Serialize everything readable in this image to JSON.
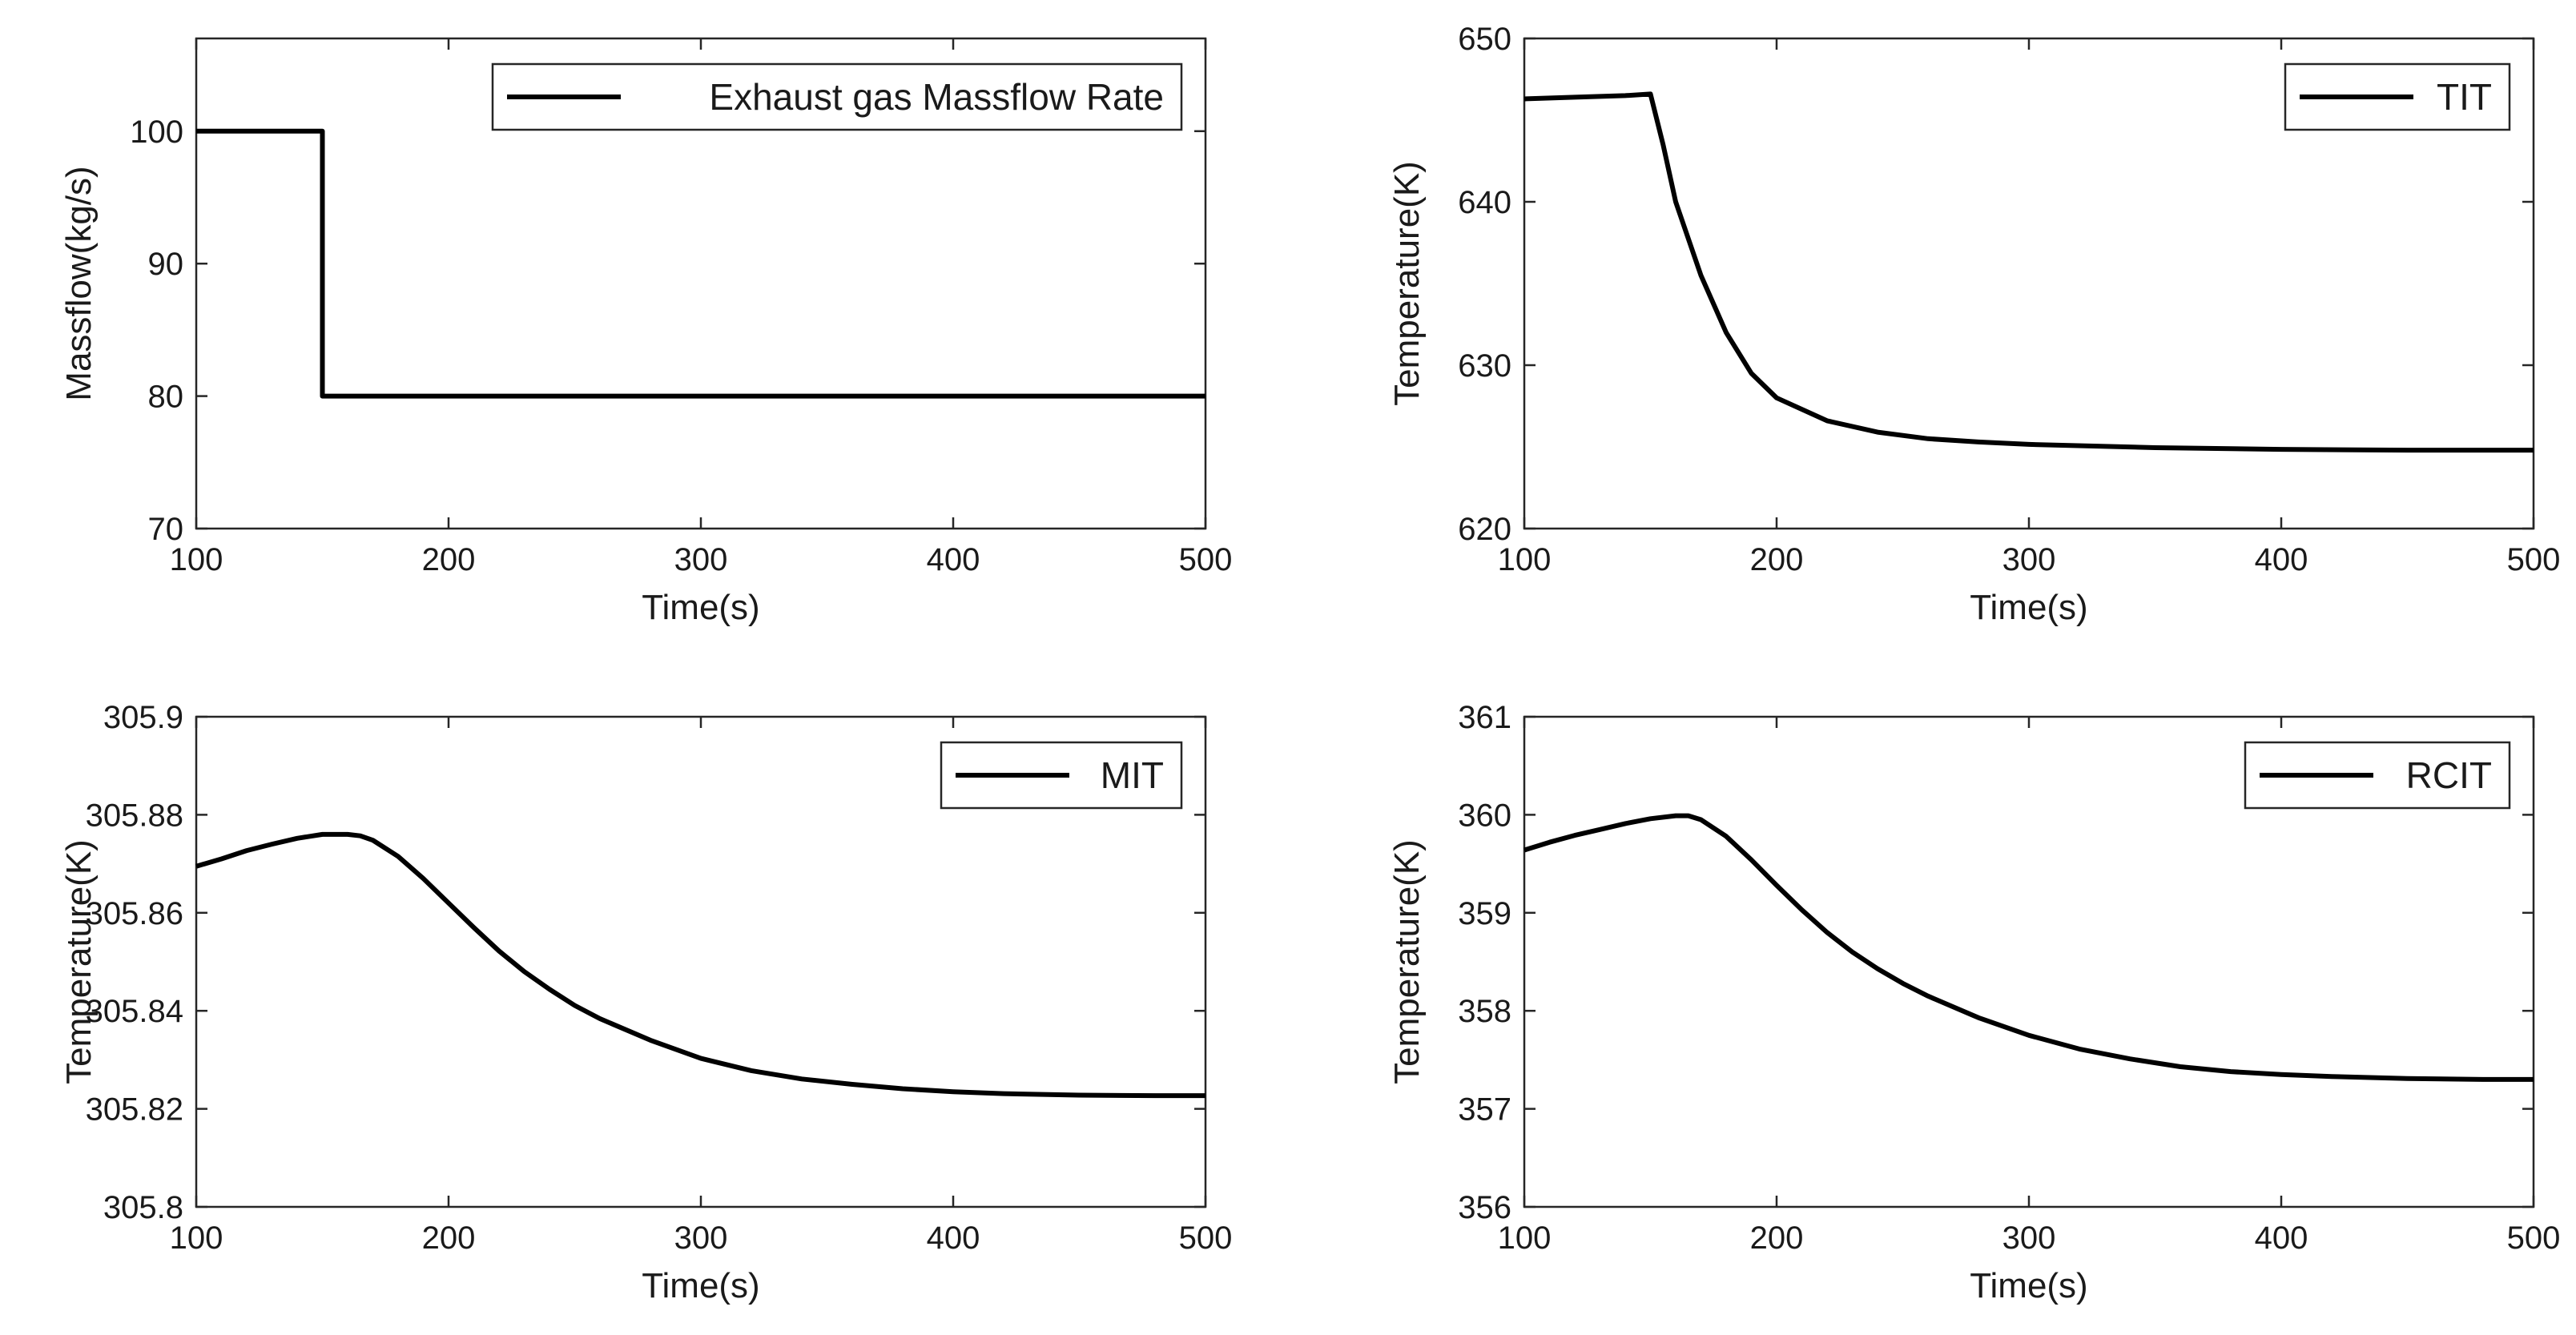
{
  "chart_data": [
    {
      "type": "line",
      "xlabel": "Time(s)",
      "ylabel": "Massflow(kg/s)",
      "xlim": [
        100,
        500
      ],
      "ylim": [
        70,
        107
      ],
      "xticks": [
        100,
        200,
        300,
        400,
        500
      ],
      "yticks": [
        70,
        80,
        90,
        100
      ],
      "ytick_labels": [
        "70",
        "80",
        "90",
        "100"
      ],
      "legend_position": "top-right",
      "series": [
        {
          "name": "Exhaust gas Massflow Rate",
          "color": "#000000",
          "x": [
            100,
            150,
            150,
            500
          ],
          "y": [
            100,
            100,
            80,
            80
          ]
        }
      ]
    },
    {
      "type": "line",
      "xlabel": "Time(s)",
      "ylabel": "Temperature(K)",
      "xlim": [
        100,
        500
      ],
      "ylim": [
        620,
        650
      ],
      "xticks": [
        100,
        200,
        300,
        400,
        500
      ],
      "yticks": [
        620,
        630,
        640,
        650
      ],
      "ytick_labels": [
        "620",
        "630",
        "640",
        "650"
      ],
      "legend_position": "top-right",
      "series": [
        {
          "name": "TIT",
          "color": "#000000",
          "x": [
            100,
            120,
            140,
            150,
            155,
            160,
            170,
            180,
            190,
            200,
            220,
            240,
            260,
            280,
            300,
            350,
            400,
            450,
            500
          ],
          "y": [
            646.3,
            646.4,
            646.5,
            646.6,
            643.5,
            640.0,
            635.5,
            632.0,
            629.5,
            628.0,
            626.6,
            625.9,
            625.5,
            625.3,
            625.15,
            624.95,
            624.85,
            624.8,
            624.8
          ]
        }
      ]
    },
    {
      "type": "line",
      "xlabel": "Time(s)",
      "ylabel": "Temperature(K)",
      "xlim": [
        100,
        500
      ],
      "ylim": [
        305.8,
        305.9
      ],
      "xticks": [
        100,
        200,
        300,
        400,
        500
      ],
      "yticks": [
        305.8,
        305.82,
        305.84,
        305.86,
        305.88,
        305.9
      ],
      "ytick_labels": [
        "305.8",
        "305.82",
        "305.84",
        "305.86",
        "305.88",
        "305.9"
      ],
      "legend_position": "top-right",
      "series": [
        {
          "name": "MIT",
          "color": "#000000",
          "x": [
            100,
            110,
            120,
            130,
            140,
            150,
            160,
            165,
            170,
            180,
            190,
            200,
            210,
            220,
            230,
            240,
            250,
            260,
            280,
            300,
            320,
            340,
            360,
            380,
            400,
            420,
            450,
            480,
            500
          ],
          "y": [
            305.8695,
            305.871,
            305.8727,
            305.874,
            305.8752,
            305.876,
            305.876,
            305.8757,
            305.8748,
            305.8715,
            305.867,
            305.862,
            305.857,
            305.8522,
            305.848,
            305.8444,
            305.8411,
            305.8384,
            305.834,
            305.8303,
            305.8278,
            305.8261,
            305.825,
            305.8241,
            305.8235,
            305.8231,
            305.8228,
            305.8227,
            305.8227
          ]
        }
      ]
    },
    {
      "type": "line",
      "xlabel": "Time(s)",
      "ylabel": "Temperature(K)",
      "xlim": [
        100,
        500
      ],
      "ylim": [
        356,
        361
      ],
      "xticks": [
        100,
        200,
        300,
        400,
        500
      ],
      "yticks": [
        356,
        357,
        358,
        359,
        360,
        361
      ],
      "ytick_labels": [
        "356",
        "357",
        "358",
        "359",
        "360",
        "361"
      ],
      "legend_position": "top-right",
      "series": [
        {
          "name": "RCIT",
          "color": "#000000",
          "x": [
            100,
            110,
            120,
            130,
            140,
            150,
            160,
            165,
            170,
            180,
            190,
            200,
            210,
            220,
            230,
            240,
            250,
            260,
            280,
            300,
            320,
            340,
            360,
            380,
            400,
            420,
            450,
            480,
            500
          ],
          "y": [
            359.64,
            359.72,
            359.79,
            359.85,
            359.91,
            359.96,
            359.99,
            359.99,
            359.95,
            359.78,
            359.54,
            359.28,
            359.03,
            358.8,
            358.6,
            358.43,
            358.28,
            358.15,
            357.93,
            357.75,
            357.61,
            357.51,
            357.43,
            357.38,
            357.35,
            357.33,
            357.31,
            357.3,
            357.3
          ]
        }
      ]
    }
  ]
}
